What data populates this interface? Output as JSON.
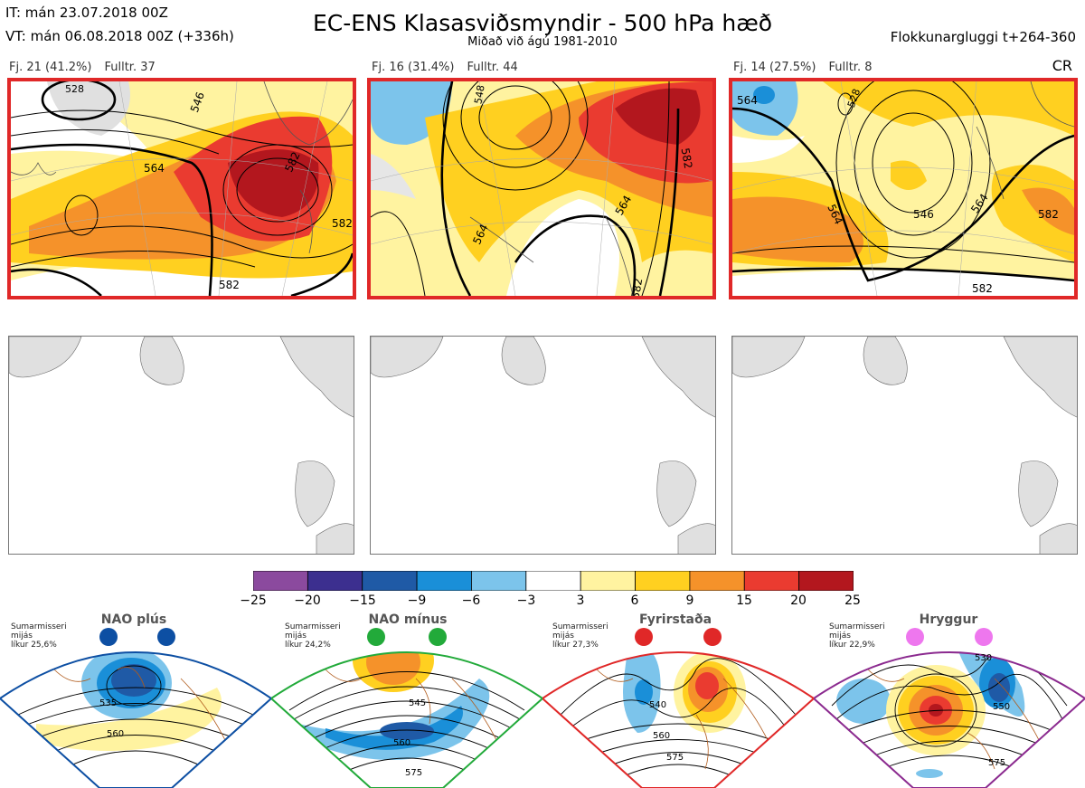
{
  "header": {
    "it_line": "IT: mán 23.07.2018 00Z",
    "vt_line": "VT: mán 06.08.2018 00Z  (+336h)",
    "title": "EC-ENS Klasasviðsmyndir - 500 hPa hæð",
    "subtitle": "Miðað við ágú 1981-2010",
    "window": "Flokkunargluggi t+264-360",
    "cr": "CR"
  },
  "clusters": [
    {
      "fj": "Fj. 21 (41.2%)",
      "fulltr": "Fulltr. 37",
      "contour_labels": [
        "546",
        "564",
        "582",
        "582",
        "582",
        "528"
      ]
    },
    {
      "fj": "Fj. 16 (31.4%)",
      "fulltr": "Fulltr. 44",
      "contour_labels": [
        "548",
        "564",
        "564",
        "582",
        "582"
      ]
    },
    {
      "fj": "Fj. 14 (27.5%)",
      "fulltr": "Fulltr. 8",
      "contour_labels": [
        "564",
        "546",
        "564",
        "564",
        "582",
        "582",
        "528"
      ]
    }
  ],
  "colorbar": {
    "ticks": [
      "−25",
      "−20",
      "−15",
      "−9",
      "−6",
      "−3",
      "3",
      "6",
      "9",
      "15",
      "20",
      "25"
    ],
    "colors": [
      "#8b4a9e",
      "#3c2f8f",
      "#1f5aa6",
      "#1a8fd8",
      "#7cc4eb",
      "#ffffff",
      "#fff3a0",
      "#ffd020",
      "#f5922a",
      "#ea3b30",
      "#b3171e"
    ]
  },
  "regimes": [
    {
      "name": "NAO plús",
      "line1": "Sumarmisseri",
      "line2": "mijás",
      "line3": "líkur 25,6%",
      "color": "#0d4fa3",
      "labels": [
        "535",
        "560"
      ]
    },
    {
      "name": "NAO mínus",
      "line1": "Sumarmisseri",
      "line2": "mijás",
      "line3": "líkur 24,2%",
      "color": "#22aa3a",
      "labels": [
        "545",
        "560",
        "575"
      ]
    },
    {
      "name": "Fyrirstaða",
      "line1": "Sumarmisseri",
      "line2": "mijás",
      "line3": "líkur 27,3%",
      "color": "#e02828",
      "labels": [
        "540",
        "560",
        "575"
      ]
    },
    {
      "name": "Hryggur",
      "line1": "Sumarmisseri",
      "line2": "mijás",
      "line3": "líkur 22,9%",
      "color": "#8b2a8f",
      "labels": [
        "530",
        "550",
        "575"
      ]
    }
  ]
}
